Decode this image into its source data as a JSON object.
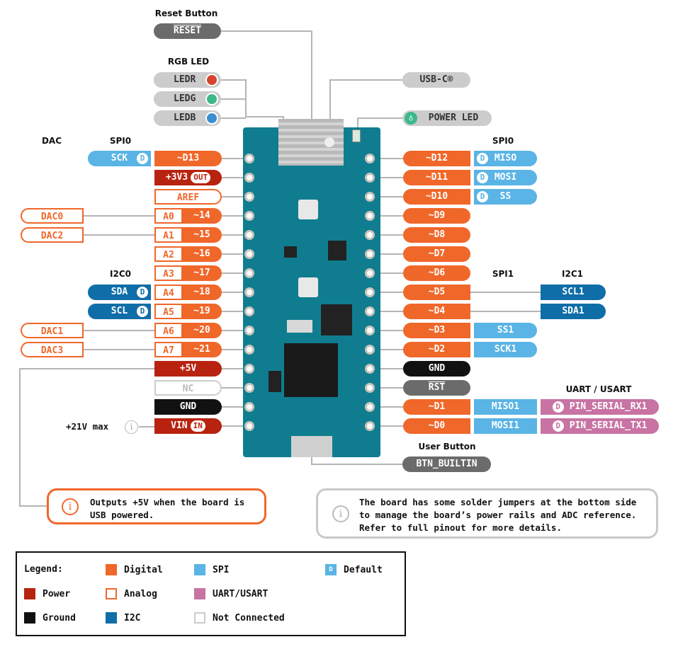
{
  "colors": {
    "digital": "#f0672a",
    "power": "#b8230f",
    "analog": "#f0672a",
    "ground": "#111111",
    "spi": "#5ab4e5",
    "i2c": "#0f6ea8",
    "uart": "#c873a4",
    "nc": "#cccccc",
    "gray": "#6b6b6b",
    "board": "#0f7d8f",
    "line": "#b5b5b5"
  },
  "top": {
    "reset_title": "Reset Button",
    "reset_label": "RESET",
    "rgb_title": "RGB LED",
    "ledr": "LEDR",
    "ledg": "LEDG",
    "ledb": "LEDB",
    "usbc": "USB-C®",
    "power_led": "POWER LED"
  },
  "headers": {
    "dac": "DAC",
    "spi0_left": "SPI0",
    "i2c0": "I2C0",
    "spi0_right": "SPI0",
    "spi1": "SPI1",
    "i2c1": "I2C1",
    "uart": "UART / USART",
    "user_button": "User Button"
  },
  "btn_builtin": "BTN_BUILTIN",
  "default_badge": "D",
  "vin_note": "+21V max",
  "left_pins": [
    {
      "main": [
        {
          "t": "~D13",
          "k": "digital"
        }
      ],
      "sec": {
        "t": "SCK",
        "k": "spi",
        "d": true
      }
    },
    {
      "main": [
        {
          "t": "+3V3",
          "k": "power",
          "badge": "OUT"
        }
      ]
    },
    {
      "main": [
        {
          "t": "AREF",
          "k": "analog"
        }
      ]
    },
    {
      "main": [
        {
          "t": "A0",
          "k": "analog"
        },
        {
          "t": "~14",
          "k": "digital"
        }
      ],
      "far": {
        "t": "DAC0",
        "k": "analog"
      }
    },
    {
      "main": [
        {
          "t": "A1",
          "k": "analog"
        },
        {
          "t": "~15",
          "k": "digital"
        }
      ],
      "far": {
        "t": "DAC2",
        "k": "analog"
      }
    },
    {
      "main": [
        {
          "t": "A2",
          "k": "analog"
        },
        {
          "t": "~16",
          "k": "digital"
        }
      ]
    },
    {
      "main": [
        {
          "t": "A3",
          "k": "analog"
        },
        {
          "t": "~17",
          "k": "digital"
        }
      ]
    },
    {
      "main": [
        {
          "t": "A4",
          "k": "analog"
        },
        {
          "t": "~18",
          "k": "digital"
        }
      ],
      "sec": {
        "t": "SDA",
        "k": "i2c",
        "d": true
      }
    },
    {
      "main": [
        {
          "t": "A5",
          "k": "analog"
        },
        {
          "t": "~19",
          "k": "digital"
        }
      ],
      "sec": {
        "t": "SCL",
        "k": "i2c",
        "d": true
      }
    },
    {
      "main": [
        {
          "t": "A6",
          "k": "analog"
        },
        {
          "t": "~20",
          "k": "digital"
        }
      ],
      "far": {
        "t": "DAC1",
        "k": "analog"
      }
    },
    {
      "main": [
        {
          "t": "A7",
          "k": "analog"
        },
        {
          "t": "~21",
          "k": "digital"
        }
      ],
      "far": {
        "t": "DAC3",
        "k": "analog"
      }
    },
    {
      "main": [
        {
          "t": "+5V",
          "k": "power"
        }
      ]
    },
    {
      "main": [
        {
          "t": "NC",
          "k": "nc"
        }
      ]
    },
    {
      "main": [
        {
          "t": "GND",
          "k": "ground"
        }
      ]
    },
    {
      "main": [
        {
          "t": "VIN",
          "k": "power",
          "badge": "IN"
        }
      ]
    }
  ],
  "right_pins": [
    {
      "main": {
        "t": "~D12",
        "k": "digital"
      },
      "sec": {
        "t": "MISO",
        "k": "spi",
        "d": true
      }
    },
    {
      "main": {
        "t": "~D11",
        "k": "digital"
      },
      "sec": {
        "t": "MOSI",
        "k": "spi",
        "d": true
      }
    },
    {
      "main": {
        "t": "~D10",
        "k": "digital"
      },
      "sec": {
        "t": "SS",
        "k": "spi",
        "d": true
      }
    },
    {
      "main": {
        "t": "~D9",
        "k": "digital"
      }
    },
    {
      "main": {
        "t": "~D8",
        "k": "digital"
      }
    },
    {
      "main": {
        "t": "~D7",
        "k": "digital"
      }
    },
    {
      "main": {
        "t": "~D6",
        "k": "digital"
      }
    },
    {
      "main": {
        "t": "~D5",
        "k": "digital"
      },
      "far": {
        "t": "SCL1",
        "k": "i2c"
      }
    },
    {
      "main": {
        "t": "~D4",
        "k": "digital"
      },
      "far": {
        "t": "SDA1",
        "k": "i2c"
      }
    },
    {
      "main": {
        "t": "~D3",
        "k": "digital"
      },
      "sec": {
        "t": "SS1",
        "k": "spi"
      }
    },
    {
      "main": {
        "t": "~D2",
        "k": "digital"
      },
      "sec": {
        "t": "SCK1",
        "k": "spi"
      }
    },
    {
      "main": {
        "t": "GND",
        "k": "ground"
      }
    },
    {
      "main": {
        "t": "RST",
        "k": "gray",
        "overline": true
      }
    },
    {
      "main": {
        "t": "~D1",
        "k": "digital"
      },
      "sec": {
        "t": "MISO1",
        "k": "spi"
      },
      "far": {
        "t": "PIN_SERIAL_RX1",
        "k": "uart",
        "d": true
      }
    },
    {
      "main": {
        "t": "~D0",
        "k": "digital"
      },
      "sec": {
        "t": "MOSI1",
        "k": "spi"
      },
      "far": {
        "t": "PIN_SERIAL_TX1",
        "k": "uart",
        "d": true
      }
    }
  ],
  "notes": {
    "left": "Outputs +5V when the board is USB powered.",
    "right": "The board has some solder jumpers at the bottom side to manage the board’s power rails and ADC reference. Refer to full pinout for more details."
  },
  "legend": {
    "title": "Legend:",
    "items": [
      {
        "label": "Digital",
        "k": "digital"
      },
      {
        "label": "SPI",
        "k": "spi"
      },
      {
        "label": "Default",
        "k": "default"
      },
      {
        "label": "Power",
        "k": "power"
      },
      {
        "label": "Analog",
        "k": "analog"
      },
      {
        "label": "UART/USART",
        "k": "uart"
      },
      {
        "label": "Ground",
        "k": "ground"
      },
      {
        "label": "I2C",
        "k": "i2c"
      },
      {
        "label": "Not Connected",
        "k": "nc"
      }
    ]
  }
}
